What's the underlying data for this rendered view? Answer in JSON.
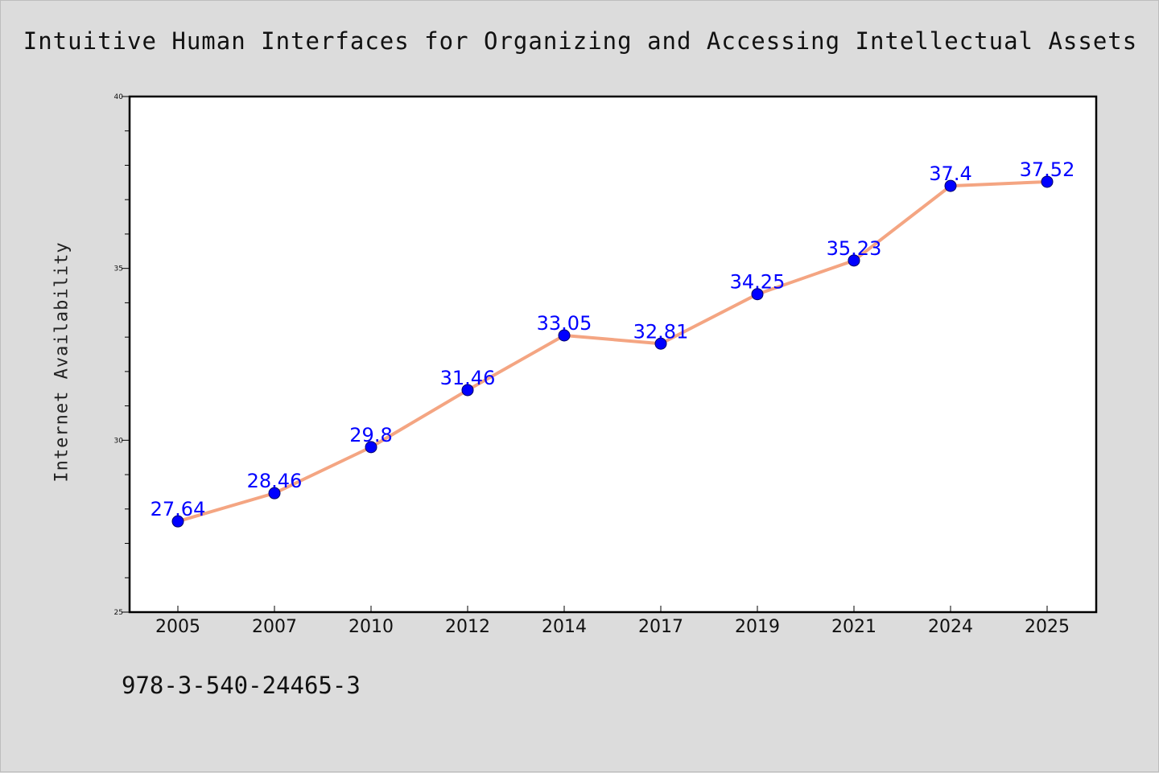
{
  "chart_data": {
    "type": "line",
    "title": "Intuitive Human Interfaces for Organizing and Accessing Intellectual Assets",
    "xlabel": "",
    "ylabel": "Internet Availability",
    "categories": [
      "2005",
      "2007",
      "2010",
      "2012",
      "2014",
      "2017",
      "2019",
      "2021",
      "2024",
      "2025"
    ],
    "series": [
      {
        "values": [
          27.64,
          28.46,
          29.8,
          31.46,
          33.05,
          32.81,
          34.25,
          35.23,
          37.4,
          37.52
        ],
        "data_labels": [
          "27.64",
          "28.46",
          "29.8",
          "31.46",
          "33.05",
          "32.81",
          "34.25",
          "35.23",
          "37.4",
          "37.52"
        ],
        "line_color": "#f4a582",
        "marker_color": "#0000ff"
      }
    ],
    "ylim": [
      25,
      40
    ],
    "y_major_ticks": [
      25,
      30,
      35,
      40
    ],
    "y_tick_labels": [
      "25",
      "30",
      "35",
      "40"
    ],
    "y_minor_step": 1,
    "grid": false,
    "legend": "none",
    "label_color": "#0000ff"
  },
  "footer": {
    "isbn": "978-3-540-24465-3"
  }
}
